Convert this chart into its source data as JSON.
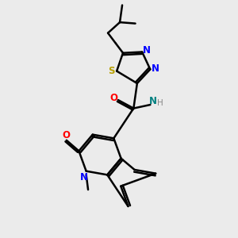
{
  "bg_color": "#ebebeb",
  "bond_color": "#000000",
  "bond_width": 1.8,
  "figsize": [
    3.0,
    3.0
  ],
  "dpi": 100,
  "N_blue": "#0000ff",
  "O_red": "#ff0000",
  "S_yellow": "#b8a000",
  "N_teal": "#008080",
  "C_black": "#000000",
  "xlim": [
    0,
    10
  ],
  "ylim": [
    0,
    10
  ]
}
